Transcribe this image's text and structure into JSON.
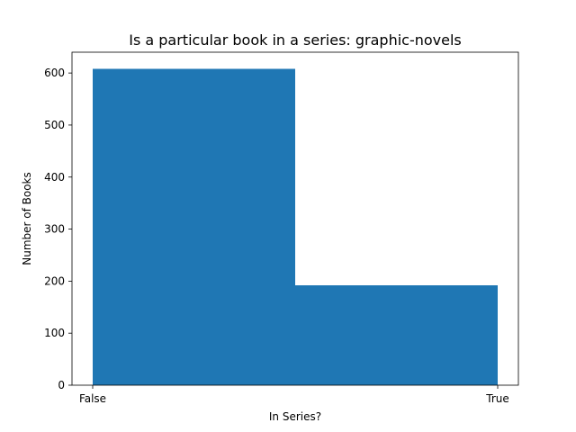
{
  "chart_data": {
    "type": "bar",
    "title": "Is a particular book in a series: graphic-novels",
    "xlabel": "In Series?",
    "ylabel": "Number of Books",
    "categories": [
      "False",
      "True"
    ],
    "values": [
      608,
      192
    ],
    "ylim": [
      0,
      640
    ],
    "yticks": [
      0,
      100,
      200,
      300,
      400,
      500,
      600
    ],
    "xticks": [
      "False",
      "True"
    ],
    "bar_color": "#1f77b4",
    "grid": false,
    "legend": "none"
  }
}
